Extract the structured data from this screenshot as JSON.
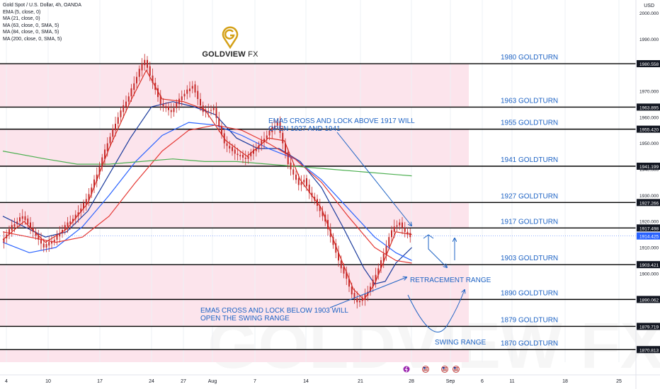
{
  "header": {
    "symbol_line": "Gold Spot / U.S. Dollar, 4h, OANDA",
    "indicators": [
      "EMA (5, close, 0)",
      "MA (21, close, 0)",
      "MA (63, close, 0, SMA, 5)",
      "MA (84, close, 0, SMA, 5)",
      "MA (200, close, 0, SMA, 5)"
    ],
    "currency": "USD"
  },
  "brand": {
    "name_bold": "GOLDVIEW",
    "name_light": " FX",
    "watermark": "GOLDVIEW FX"
  },
  "colors": {
    "zone_fill": "#fce4ec",
    "level_line": "#000000",
    "annotation_text": "#1e63c4",
    "candle": "#c62828",
    "ema5": "#d93025",
    "ma21": "#1a3a9c",
    "ma63": "#2962ff",
    "ma84": "#e53935",
    "ma200": "#4caf50",
    "brand_gold": "#d4a017"
  },
  "chart_data": {
    "type": "line",
    "title": "Gold Spot / U.S. Dollar, 4h, OANDA",
    "ylim": [
      1866,
      2005
    ],
    "y_ticks": [
      1890,
      1900,
      1910,
      1920,
      1930,
      1940,
      1950,
      1960,
      1970,
      1990,
      2000
    ],
    "x_ticks": [
      "4",
      "10",
      "17",
      "24",
      "27",
      "Aug",
      "7",
      "14",
      "21",
      "28",
      "Sep",
      "6",
      "11",
      "18",
      "25"
    ],
    "levels": [
      {
        "price": 1980.558,
        "label": "1980 GOLDTURN",
        "tag": "1980.558"
      },
      {
        "price": 1963.895,
        "label": "1963 GOLDTURN",
        "tag": "1963.895"
      },
      {
        "price": 1955.42,
        "label": "1955 GOLDTURN",
        "tag": "1955.420"
      },
      {
        "price": 1941.199,
        "label": "1941 GOLDTURN",
        "tag": "1941.199"
      },
      {
        "price": 1927.266,
        "label": "1927 GOLDTURN",
        "tag": "1927.266"
      },
      {
        "price": 1917.498,
        "label": "1917 GOLDTURN",
        "tag": "1917.498"
      },
      {
        "price": 1903.421,
        "label": "1903 GOLDTURN",
        "tag": "1903.421"
      },
      {
        "price": 1890.062,
        "label": "1890 GOLDTURN",
        "tag": "1890.062"
      },
      {
        "price": 1879.719,
        "label": "1879 GOLDTURN",
        "tag": "1879.719"
      },
      {
        "price": 1870.813,
        "label": "1870 GOLDTURN",
        "tag": "1870.813"
      }
    ],
    "zones": [
      [
        1963.895,
        1980.558
      ],
      [
        1941.199,
        1955.42
      ],
      [
        1917.498,
        1927.266
      ],
      [
        1879.719,
        1903.421
      ],
      [
        1866,
        1870.813
      ]
    ],
    "current_price": {
      "value": 1914.425,
      "tag": "1914.425"
    },
    "annotations": [
      {
        "lines": [
          "EMA5 CROSS AND LOCK ABOVE 1917 WILL",
          "OPEN 1927 AND 1941"
        ]
      },
      {
        "lines": [
          "EMA5 CROSS AND LOCK BELOW 1903 WILL",
          "OPEN THE SWING RANGE"
        ]
      },
      {
        "lines": [
          "RETRACEMENT RANGE"
        ]
      },
      {
        "lines": [
          "SWING RANGE"
        ]
      }
    ],
    "price_series": [
      [
        0,
        1912
      ],
      [
        2,
        1918
      ],
      [
        4,
        1922
      ],
      [
        6,
        1916
      ],
      [
        8,
        1910
      ],
      [
        10,
        1913
      ],
      [
        12,
        1918
      ],
      [
        14,
        1922
      ],
      [
        16,
        1928
      ],
      [
        18,
        1938
      ],
      [
        20,
        1950
      ],
      [
        22,
        1960
      ],
      [
        24,
        1968
      ],
      [
        26,
        1978
      ],
      [
        27,
        1982
      ],
      [
        28,
        1976
      ],
      [
        30,
        1965
      ],
      [
        32,
        1962
      ],
      [
        34,
        1968
      ],
      [
        36,
        1972
      ],
      [
        38,
        1962
      ],
      [
        40,
        1963
      ],
      [
        42,
        1950
      ],
      [
        44,
        1946
      ],
      [
        46,
        1944
      ],
      [
        48,
        1948
      ],
      [
        50,
        1953
      ],
      [
        52,
        1958
      ],
      [
        53,
        1950
      ],
      [
        54,
        1942
      ],
      [
        55,
        1938
      ],
      [
        56,
        1934
      ],
      [
        57,
        1936
      ],
      [
        58,
        1931
      ],
      [
        59,
        1928
      ],
      [
        60,
        1924
      ],
      [
        61,
        1920
      ],
      [
        62,
        1914
      ],
      [
        63,
        1908
      ],
      [
        64,
        1902
      ],
      [
        65,
        1898
      ],
      [
        66,
        1892
      ],
      [
        67,
        1889
      ],
      [
        68,
        1890
      ],
      [
        69,
        1893
      ],
      [
        70,
        1897
      ],
      [
        71,
        1902
      ],
      [
        72,
        1907
      ],
      [
        73,
        1914
      ],
      [
        74,
        1918
      ],
      [
        75,
        1919
      ],
      [
        76,
        1916
      ],
      [
        77,
        1914
      ]
    ],
    "series": [
      {
        "name": "EMA (5, close, 0)",
        "values": [
          [
            0,
            1913
          ],
          [
            4,
            1920
          ],
          [
            8,
            1912
          ],
          [
            12,
            1917
          ],
          [
            16,
            1927
          ],
          [
            20,
            1948
          ],
          [
            24,
            1966
          ],
          [
            27,
            1978
          ],
          [
            30,
            1967
          ],
          [
            34,
            1966
          ],
          [
            38,
            1963
          ],
          [
            42,
            1951
          ],
          [
            46,
            1945
          ],
          [
            50,
            1952
          ],
          [
            53,
            1951
          ],
          [
            56,
            1936
          ],
          [
            60,
            1925
          ],
          [
            63,
            1909
          ],
          [
            66,
            1894
          ],
          [
            68,
            1890
          ],
          [
            70,
            1896
          ],
          [
            72,
            1906
          ],
          [
            74,
            1916
          ],
          [
            77,
            1915
          ]
        ]
      },
      {
        "name": "MA (21, close, 0)",
        "values": [
          [
            0,
            1922
          ],
          [
            4,
            1918
          ],
          [
            8,
            1914
          ],
          [
            12,
            1916
          ],
          [
            16,
            1924
          ],
          [
            20,
            1938
          ],
          [
            24,
            1952
          ],
          [
            28,
            1964
          ],
          [
            32,
            1966
          ],
          [
            36,
            1964
          ],
          [
            40,
            1961
          ],
          [
            44,
            1952
          ],
          [
            48,
            1948
          ],
          [
            52,
            1948
          ],
          [
            56,
            1943
          ],
          [
            60,
            1933
          ],
          [
            64,
            1918
          ],
          [
            68,
            1902
          ],
          [
            70,
            1896
          ],
          [
            72,
            1897
          ],
          [
            74,
            1904
          ],
          [
            77,
            1910
          ]
        ]
      },
      {
        "name": "MA (63, close, 0, SMA, 5)",
        "values": [
          [
            0,
            1912
          ],
          [
            5,
            1908
          ],
          [
            10,
            1910
          ],
          [
            15,
            1918
          ],
          [
            20,
            1930
          ],
          [
            25,
            1943
          ],
          [
            30,
            1953
          ],
          [
            35,
            1958
          ],
          [
            40,
            1957
          ],
          [
            45,
            1953
          ],
          [
            50,
            1948
          ],
          [
            55,
            1944
          ],
          [
            60,
            1936
          ],
          [
            65,
            1925
          ],
          [
            70,
            1914
          ],
          [
            74,
            1908
          ],
          [
            77,
            1905
          ]
        ]
      },
      {
        "name": "MA (84, close, 0, SMA, 5)",
        "values": [
          [
            0,
            1916
          ],
          [
            5,
            1914
          ],
          [
            10,
            1912
          ],
          [
            15,
            1914
          ],
          [
            20,
            1922
          ],
          [
            25,
            1935
          ],
          [
            30,
            1947
          ],
          [
            35,
            1955
          ],
          [
            40,
            1957
          ],
          [
            45,
            1955
          ],
          [
            50,
            1950
          ],
          [
            55,
            1944
          ],
          [
            60,
            1935
          ],
          [
            65,
            1922
          ],
          [
            70,
            1910
          ],
          [
            74,
            1905
          ],
          [
            77,
            1904
          ]
        ]
      },
      {
        "name": "MA (200, close, 0, SMA, 5)",
        "values": [
          [
            0,
            1947
          ],
          [
            8,
            1944
          ],
          [
            14,
            1942
          ],
          [
            20,
            1942
          ],
          [
            26,
            1943
          ],
          [
            32,
            1944
          ],
          [
            38,
            1943
          ],
          [
            44,
            1943
          ],
          [
            50,
            1942
          ],
          [
            56,
            1941
          ],
          [
            62,
            1940
          ],
          [
            68,
            1939
          ],
          [
            74,
            1938
          ],
          [
            77,
            1937.5
          ]
        ]
      }
    ]
  }
}
